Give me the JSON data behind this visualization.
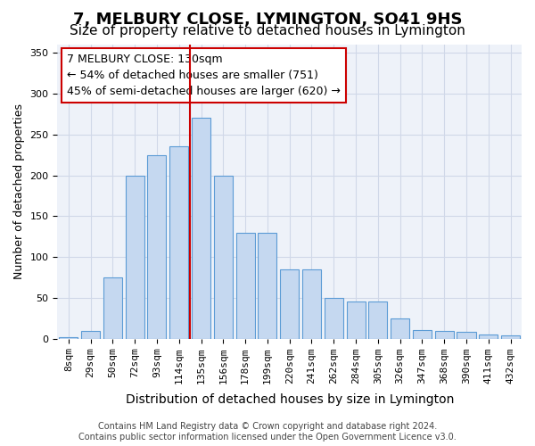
{
  "title": "7, MELBURY CLOSE, LYMINGTON, SO41 9HS",
  "subtitle": "Size of property relative to detached houses in Lymington",
  "xlabel": "Distribution of detached houses by size in Lymington",
  "ylabel": "Number of detached properties",
  "categories": [
    "8sqm",
    "29sqm",
    "50sqm",
    "72sqm",
    "93sqm",
    "114sqm",
    "135sqm",
    "156sqm",
    "178sqm",
    "199sqm",
    "220sqm",
    "241sqm",
    "262sqm",
    "284sqm",
    "305sqm",
    "326sqm",
    "347sqm",
    "368sqm",
    "390sqm",
    "411sqm",
    "432sqm"
  ],
  "values": [
    2,
    10,
    75,
    200,
    225,
    235,
    270,
    200,
    130,
    130,
    85,
    85,
    50,
    46,
    45,
    25,
    11,
    10,
    8,
    5,
    4
  ],
  "bar_color": "#c5d8f0",
  "bar_edge_color": "#5b9bd5",
  "vline_color": "#cc0000",
  "vline_pos": 5.5,
  "annotation_text": "7 MELBURY CLOSE: 130sqm\n← 54% of detached houses are smaller (751)\n45% of semi-detached houses are larger (620) →",
  "annotation_box_color": "#ffffff",
  "annotation_box_edge": "#cc0000",
  "ylim": [
    0,
    360
  ],
  "yticks": [
    0,
    50,
    100,
    150,
    200,
    250,
    300,
    350
  ],
  "grid_color": "#d0d8e8",
  "background_color": "#eef2f9",
  "footer": "Contains HM Land Registry data © Crown copyright and database right 2024.\nContains public sector information licensed under the Open Government Licence v3.0.",
  "title_fontsize": 13,
  "subtitle_fontsize": 11,
  "xlabel_fontsize": 10,
  "ylabel_fontsize": 9,
  "tick_fontsize": 8,
  "annotation_fontsize": 9,
  "footer_fontsize": 7
}
